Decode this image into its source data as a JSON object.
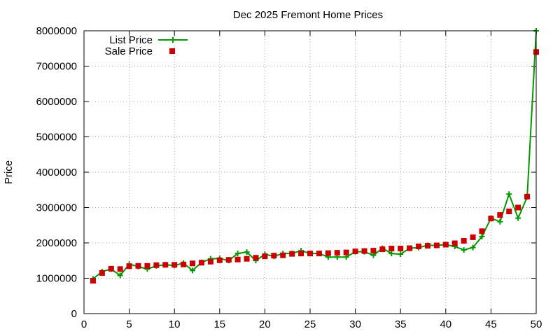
{
  "chart_data": {
    "type": "line",
    "title": "Dec 2025 Fremont Home Prices",
    "xlabel": "",
    "ylabel": "Price",
    "xlim": [
      0,
      50
    ],
    "ylim": [
      0,
      8000000
    ],
    "xticks": [
      0,
      5,
      10,
      15,
      20,
      25,
      30,
      35,
      40,
      45,
      50
    ],
    "yticks": [
      0,
      1000000,
      2000000,
      3000000,
      4000000,
      5000000,
      6000000,
      7000000,
      8000000
    ],
    "grid": true,
    "legend_position": "top-left",
    "series": [
      {
        "name": "List Price",
        "style": "line-plus",
        "color": "#009900",
        "x": [
          1,
          2,
          3,
          4,
          5,
          6,
          7,
          8,
          9,
          10,
          11,
          12,
          13,
          14,
          15,
          16,
          17,
          18,
          19,
          20,
          21,
          22,
          23,
          24,
          25,
          26,
          27,
          28,
          29,
          30,
          31,
          32,
          33,
          34,
          35,
          36,
          37,
          38,
          39,
          40,
          41,
          42,
          43,
          44,
          45,
          46,
          47,
          48,
          49,
          50
        ],
        "y": [
          980000,
          1190000,
          1260000,
          1080000,
          1400000,
          1330000,
          1260000,
          1350000,
          1380000,
          1360000,
          1430000,
          1220000,
          1450000,
          1550000,
          1560000,
          1500000,
          1700000,
          1740000,
          1500000,
          1680000,
          1620000,
          1700000,
          1700000,
          1780000,
          1700000,
          1700000,
          1600000,
          1600000,
          1600000,
          1750000,
          1750000,
          1650000,
          1850000,
          1700000,
          1680000,
          1850000,
          1870000,
          1930000,
          1930000,
          1950000,
          1900000,
          1800000,
          1870000,
          2180000,
          2700000,
          2600000,
          3380000,
          2700000,
          3300000,
          8000000
        ]
      },
      {
        "name": "Sale Price",
        "style": "points-square",
        "color": "#cc0000",
        "x": [
          1,
          2,
          3,
          4,
          5,
          6,
          7,
          8,
          9,
          10,
          11,
          12,
          13,
          14,
          15,
          16,
          17,
          18,
          19,
          20,
          21,
          22,
          23,
          24,
          25,
          26,
          27,
          28,
          29,
          30,
          31,
          32,
          33,
          34,
          35,
          36,
          37,
          38,
          39,
          40,
          41,
          42,
          43,
          44,
          45,
          46,
          47,
          48,
          49,
          50
        ],
        "y": [
          930000,
          1150000,
          1270000,
          1260000,
          1340000,
          1350000,
          1350000,
          1370000,
          1380000,
          1380000,
          1390000,
          1420000,
          1440000,
          1470000,
          1510000,
          1520000,
          1530000,
          1550000,
          1580000,
          1620000,
          1640000,
          1650000,
          1690000,
          1700000,
          1700000,
          1700000,
          1710000,
          1720000,
          1730000,
          1760000,
          1770000,
          1780000,
          1820000,
          1840000,
          1840000,
          1850000,
          1900000,
          1920000,
          1930000,
          1950000,
          1990000,
          2060000,
          2160000,
          2330000,
          2690000,
          2790000,
          2890000,
          3000000,
          3310000,
          7400000
        ]
      }
    ]
  }
}
